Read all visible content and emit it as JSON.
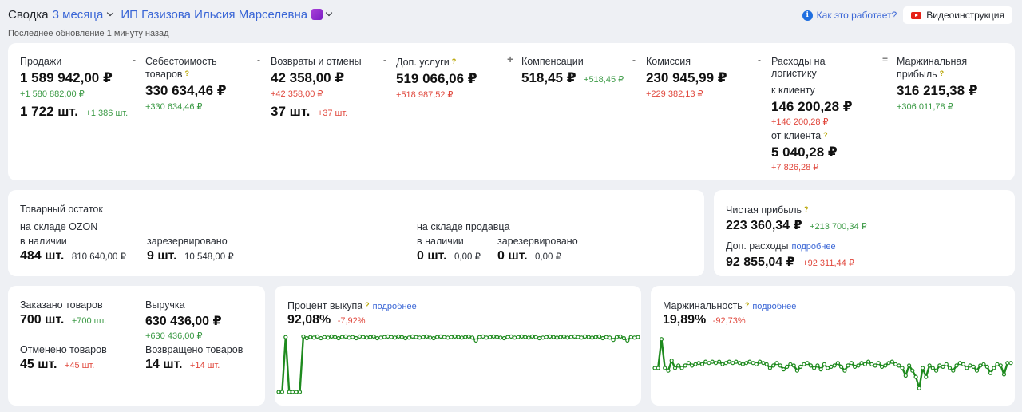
{
  "header": {
    "title": "Сводка",
    "period": "3 месяца",
    "shop": "ИП Газизова Ильсия Марселевна",
    "updated": "Последнее обновление 1 минуту назад",
    "help_label": "Как это работает?",
    "video_label": "Видеоинструкция"
  },
  "summary": {
    "sales": {
      "label": "Продажи",
      "value": "1 589 942,00 ₽",
      "delta": "+1 580 882,00 ₽",
      "qty": "1 722 шт.",
      "qty_delta": "+1 386 шт."
    },
    "cost": {
      "op": "-",
      "label1": "Себестоимость",
      "label2": "товаров",
      "value": "330 634,46 ₽",
      "delta": "+330 634,46 ₽"
    },
    "returns": {
      "op": "-",
      "label": "Возвраты и отмены",
      "value": "42 358,00 ₽",
      "delta": "+42 358,00 ₽",
      "qty": "37 шт.",
      "qty_delta": "+37 шт."
    },
    "services": {
      "op": "-",
      "label": "Доп. услуги",
      "value": "519 066,06 ₽",
      "delta": "+518 987,52 ₽"
    },
    "compensation": {
      "op": "+",
      "label": "Компенсации",
      "value": "518,45 ₽",
      "delta": "+518,45 ₽"
    },
    "commission": {
      "op": "-",
      "label": "Комиссия",
      "value": "230 945,99 ₽",
      "delta": "+229 382,13 ₽"
    },
    "logistics": {
      "op": "-",
      "label1": "Расходы на",
      "label2": "логистику",
      "to_label": "к клиенту",
      "to_value": "146 200,28 ₽",
      "to_delta": "+146 200,28 ₽",
      "from_label": "от клиента",
      "from_value": "5 040,28 ₽",
      "from_delta": "+7 826,28 ₽"
    },
    "margin": {
      "op": "=",
      "label1": "Маржинальная",
      "label2": "прибыль",
      "value": "316 215,38 ₽",
      "delta": "+306 011,78 ₽"
    }
  },
  "stock": {
    "title": "Товарный остаток",
    "ozon_label": "на складе OZON",
    "seller_label": "на складе продавца",
    "available_label": "в наличии",
    "reserved_label": "зарезервировано",
    "ozon_available_qty": "484 шт.",
    "ozon_available_sum": "810 640,00 ₽",
    "ozon_reserved_qty": "9 шт.",
    "ozon_reserved_sum": "10 548,00 ₽",
    "seller_available_qty": "0 шт.",
    "seller_available_sum": "0,00 ₽",
    "seller_reserved_qty": "0 шт.",
    "seller_reserved_sum": "0,00 ₽"
  },
  "profit": {
    "net_label": "Чистая прибыль",
    "net_value": "223 360,34 ₽",
    "net_delta": "+213 700,34 ₽",
    "extra_label": "Доп. расходы",
    "extra_more": "подробнее",
    "extra_value": "92 855,04 ₽",
    "extra_delta": "+92 311,44 ₽"
  },
  "orders": {
    "ordered_label": "Заказано товаров",
    "ordered_value": "700 шт.",
    "ordered_delta": "+700 шт.",
    "revenue_label": "Выручка",
    "revenue_value": "630 436,00 ₽",
    "revenue_delta": "+630 436,00 ₽",
    "canceled_label": "Отменено товаров",
    "canceled_value": "45 шт.",
    "canceled_delta": "+45 шт.",
    "returned_label": "Возвращено товаров",
    "returned_value": "14 шт.",
    "returned_delta": "+14 шт."
  },
  "buyout": {
    "label": "Процент выкупа",
    "more": "подробнее",
    "value": "92,08%",
    "delta": "-7,92%"
  },
  "marginality": {
    "label": "Маржинальность",
    "more": "подробнее",
    "value": "19,89%",
    "delta": "-92,73%"
  },
  "chart_data": [
    {
      "type": "line",
      "color": "#1e8a1e",
      "series": [
        {
          "values": [
            0,
            0,
            97,
            0,
            0,
            0,
            0,
            98,
            95,
            97,
            96,
            98,
            95,
            97,
            96,
            98,
            97,
            95,
            97,
            98,
            96,
            97,
            95,
            98,
            97,
            96,
            97,
            98,
            95,
            96,
            97,
            98,
            97,
            96,
            98,
            97,
            95,
            96,
            98,
            97,
            96,
            97,
            98,
            96,
            95,
            97,
            98,
            97,
            96,
            97,
            98,
            97,
            96,
            97,
            98,
            96,
            91,
            97,
            98,
            96,
            97,
            98,
            97,
            96,
            95,
            97,
            98,
            96,
            97,
            98,
            97,
            96,
            98,
            97,
            95,
            96,
            97,
            98,
            97,
            96,
            97,
            98,
            96,
            97,
            98,
            97,
            96,
            98,
            97,
            96,
            97,
            98,
            95,
            97,
            96,
            92,
            97,
            98,
            95,
            91,
            97,
            96,
            97
          ]
        }
      ],
      "ylim": [
        0,
        100
      ]
    },
    {
      "type": "line",
      "color": "#1e8a1e",
      "series": [
        {
          "values": [
            19,
            19,
            42,
            19,
            17,
            25,
            19,
            21,
            19,
            21,
            23,
            21,
            22,
            23,
            22,
            24,
            23,
            24,
            23,
            24,
            22,
            23,
            24,
            23,
            24,
            23,
            22,
            23,
            24,
            23,
            22,
            24,
            23,
            22,
            19,
            21,
            23,
            21,
            18,
            20,
            22,
            21,
            17,
            20,
            22,
            23,
            21,
            19,
            21,
            18,
            22,
            19,
            20,
            21,
            23,
            20,
            17,
            21,
            23,
            20,
            21,
            23,
            22,
            24,
            22,
            21,
            23,
            20,
            21,
            23,
            24,
            22,
            21,
            19,
            13,
            21,
            17,
            12,
            3,
            19,
            12,
            21,
            19,
            17,
            21,
            20,
            22,
            19,
            17,
            21,
            23,
            22,
            19,
            21,
            20,
            17,
            21,
            22,
            20,
            15,
            19,
            22,
            21,
            14,
            23,
            23
          ]
        }
      ],
      "ylim": [
        0,
        45
      ]
    }
  ]
}
